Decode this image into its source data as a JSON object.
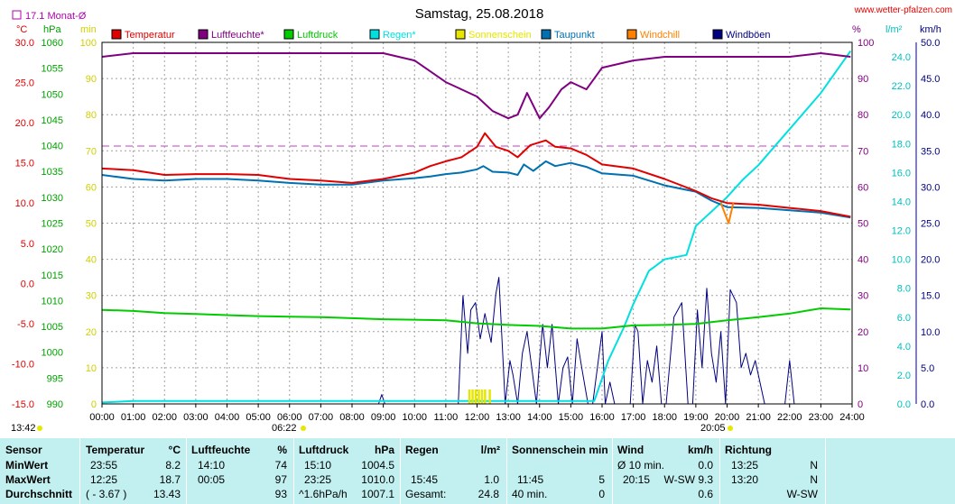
{
  "header": {
    "title": "Samstag, 25.08.2018",
    "site": "www.wetter-pfalzen.com",
    "monthly_avg_label": "17.1 Monat-Ø",
    "unit_labels": {
      "celsius": "°C",
      "hpa": "hPa",
      "min": "min",
      "pct": "%",
      "rain": "l/m²",
      "wind": "km/h"
    }
  },
  "legend": [
    {
      "label": "Temperatur",
      "color": "#e00000"
    },
    {
      "label": "Luftfeuchte*",
      "color": "#800080"
    },
    {
      "label": "Luftdruck",
      "color": "#00cc00"
    },
    {
      "label": "Regen*",
      "color": "#00e0e0"
    },
    {
      "label": "Sonnenschein",
      "color": "#e6e600"
    },
    {
      "label": "Taupunkt",
      "color": "#0070b0"
    },
    {
      "label": "Windchill",
      "color": "#ff8000"
    },
    {
      "label": "Windböen",
      "color": "#000080"
    }
  ],
  "axis_markers": {
    "sunrise": "06:22",
    "sunset": "20:05",
    "left_time": "13:42"
  },
  "chart_data": {
    "type": "line",
    "title": "Samstag, 25.08.2018",
    "x_unit": "time of day",
    "x_ticks": [
      "00:00",
      "01:00",
      "02:00",
      "03:00",
      "04:00",
      "05:00",
      "06:00",
      "07:00",
      "08:00",
      "09:00",
      "10:00",
      "11:00",
      "12:00",
      "13:00",
      "14:00",
      "15:00",
      "16:00",
      "17:00",
      "18:00",
      "19:00",
      "20:00",
      "21:00",
      "22:00",
      "23:00",
      "24:00"
    ],
    "axes": {
      "temperature_c": {
        "min": -15,
        "max": 30,
        "ticks": [
          "30.0",
          "25.0",
          "20.0",
          "15.0",
          "10.0",
          "5.0",
          "0.0",
          "-5.0",
          "-10.0",
          "-15.0"
        ]
      },
      "pressure_hpa": {
        "min": 990,
        "max": 1060,
        "ticks": [
          "1060",
          "1055",
          "1050",
          "1045",
          "1040",
          "1035",
          "1030",
          "1025",
          "1020",
          "1015",
          "1010",
          "1005",
          "1000",
          "995",
          "990"
        ]
      },
      "sun_min": {
        "min": 0,
        "max": 100,
        "ticks": [
          "100",
          "90",
          "80",
          "70",
          "60",
          "50",
          "40",
          "30",
          "20",
          "10",
          "0"
        ]
      },
      "humidity_pct": {
        "min": 0,
        "max": 100,
        "ticks": [
          "100",
          "90",
          "80",
          "70",
          "60",
          "50",
          "40",
          "30",
          "20",
          "10",
          "0"
        ]
      },
      "rain_lm2": {
        "min": 0,
        "max": 25,
        "ticks": [
          "24.0",
          "22.0",
          "20.0",
          "18.0",
          "16.0",
          "14.0",
          "12.0",
          "10.0",
          "8.0",
          "6.0",
          "4.0",
          "2.0",
          "0.0"
        ]
      },
      "wind_kmh": {
        "min": 0,
        "max": 50,
        "ticks": [
          "50.0",
          "45.0",
          "40.0",
          "35.0",
          "30.0",
          "25.0",
          "20.0",
          "15.0",
          "10.0",
          "5.0",
          "0.0"
        ]
      }
    },
    "monthly_avg_temp": 17.1,
    "series": [
      {
        "name": "Temperatur",
        "unit": "°C",
        "x": [
          0,
          1,
          2,
          3,
          4,
          5,
          6,
          7,
          8,
          9,
          10,
          10.5,
          11,
          11.5,
          12,
          12.25,
          12.6,
          13,
          13.3,
          13.7,
          14.2,
          14.5,
          15,
          15.5,
          16,
          17,
          18,
          19,
          19.5,
          20,
          21,
          22,
          23,
          23.95
        ],
        "y": [
          14.3,
          14.1,
          13.5,
          13.6,
          13.6,
          13.5,
          13.0,
          12.8,
          12.5,
          13.0,
          13.8,
          14.6,
          15.2,
          15.7,
          17.0,
          18.7,
          17.0,
          16.5,
          15.7,
          17.2,
          17.8,
          17.0,
          16.8,
          16.0,
          14.8,
          14.3,
          13.0,
          11.5,
          10.6,
          10.0,
          9.8,
          9.4,
          9.0,
          8.3
        ]
      },
      {
        "name": "Luftfeuchte*",
        "unit": "%",
        "x": [
          0,
          1,
          2,
          3,
          4,
          5,
          6,
          7,
          8,
          9,
          10,
          10.5,
          11,
          11.5,
          12,
          12.5,
          13,
          13.3,
          13.6,
          14.0,
          14.3,
          14.7,
          15.0,
          15.5,
          16,
          17,
          18,
          19,
          20,
          21,
          22,
          23,
          23.95
        ],
        "y": [
          96,
          97,
          97,
          97,
          97,
          97,
          97,
          97,
          97,
          97,
          95,
          92,
          89,
          87,
          85,
          81,
          79,
          80,
          86,
          79,
          82,
          87,
          89,
          87,
          93,
          95,
          96,
          96,
          96,
          96,
          96,
          97,
          96
        ]
      },
      {
        "name": "Luftdruck",
        "unit": "hPa",
        "x": [
          0,
          1,
          2,
          3,
          4,
          5,
          6,
          7,
          8,
          9,
          10,
          11,
          12,
          13,
          14,
          15,
          16,
          17,
          18,
          19,
          20,
          21,
          22,
          23,
          23.95
        ],
        "y": [
          1008.2,
          1008.0,
          1007.6,
          1007.4,
          1007.2,
          1007.0,
          1006.9,
          1006.8,
          1006.6,
          1006.4,
          1006.3,
          1006.2,
          1005.6,
          1005.3,
          1005.1,
          1004.6,
          1004.6,
          1005.2,
          1005.3,
          1005.5,
          1006.2,
          1006.8,
          1007.5,
          1008.5,
          1008.3
        ]
      },
      {
        "name": "Regen*",
        "unit": "l/m²",
        "x": [
          0,
          1,
          2,
          3,
          4,
          5,
          6,
          7,
          8,
          9,
          10,
          11,
          12,
          13,
          14,
          15,
          15.5,
          15.75,
          16.2,
          16.7,
          17.0,
          17.5,
          18.0,
          18.7,
          19.0,
          19.5,
          20.0,
          20.5,
          21.0,
          22.0,
          23.0,
          23.95
        ],
        "y": [
          0.1,
          0.2,
          0.2,
          0.2,
          0.2,
          0.2,
          0.2,
          0.2,
          0.2,
          0.2,
          0.2,
          0.2,
          0.2,
          0.2,
          0.2,
          0.2,
          0.2,
          0.2,
          3.0,
          5.3,
          6.9,
          9.2,
          10.0,
          10.3,
          12.3,
          13.3,
          14.3,
          15.5,
          16.5,
          19.0,
          21.5,
          24.4
        ]
      },
      {
        "name": "Sonnenschein",
        "unit": "min",
        "x": [
          11.75,
          11.85,
          11.95,
          12.05,
          12.15,
          12.25,
          12.4
        ],
        "y": [
          4,
          4,
          4,
          4,
          4,
          4,
          4
        ]
      },
      {
        "name": "Taupunkt",
        "unit": "°C",
        "x": [
          0,
          1,
          2,
          3,
          4,
          5,
          6,
          7,
          8,
          9,
          10,
          10.5,
          11,
          11.5,
          12,
          12.2,
          12.5,
          13,
          13.3,
          13.5,
          13.8,
          14.2,
          14.5,
          15,
          15.5,
          16,
          17,
          18,
          19,
          19.5,
          20,
          21,
          22,
          23,
          23.95
        ],
        "y": [
          13.5,
          13.0,
          12.8,
          13.0,
          13.0,
          12.8,
          12.5,
          12.3,
          12.3,
          12.8,
          13.1,
          13.3,
          13.6,
          13.8,
          14.2,
          14.6,
          13.9,
          13.8,
          13.5,
          14.8,
          14.0,
          15.2,
          14.6,
          15.0,
          14.5,
          13.7,
          13.4,
          12.2,
          11.4,
          10.3,
          9.5,
          9.4,
          9.1,
          8.8,
          8.2
        ]
      },
      {
        "name": "Windchill",
        "unit": "°C",
        "x": [
          19.8,
          20.05,
          20.2
        ],
        "y": [
          10.0,
          7.5,
          10.0
        ]
      },
      {
        "name": "Windböen",
        "unit": "km/h",
        "x": [
          0,
          8.85,
          8.95,
          9.05,
          11.4,
          11.55,
          11.7,
          11.8,
          11.95,
          12.1,
          12.25,
          12.45,
          12.6,
          12.7,
          12.9,
          13.05,
          13.15,
          13.3,
          13.45,
          13.6,
          13.75,
          13.9,
          14.0,
          14.1,
          14.25,
          14.4,
          14.6,
          14.75,
          14.9,
          15.05,
          15.2,
          15.35,
          15.55,
          15.7,
          16.0,
          16.1,
          16.25,
          16.4,
          16.9,
          17.05,
          17.15,
          17.3,
          17.45,
          17.6,
          17.75,
          17.9,
          18.05,
          18.3,
          18.55,
          18.75,
          18.9,
          19.05,
          19.2,
          19.35,
          19.5,
          19.65,
          19.8,
          19.95,
          20.1,
          20.3,
          20.45,
          20.6,
          20.75,
          20.9,
          21.05,
          21.2,
          21.4,
          21.85,
          22.0,
          22.15,
          22.35,
          22.5,
          24.0
        ],
        "y": [
          0,
          0,
          1.3,
          0,
          0,
          15.0,
          7.0,
          13.0,
          14.0,
          9.0,
          12.5,
          8.5,
          15.2,
          17.5,
          0,
          6.0,
          4.0,
          0,
          7.0,
          10.0,
          5.0,
          0,
          6.0,
          11.0,
          5.0,
          11.0,
          0,
          5.0,
          6.5,
          0,
          9.0,
          5.0,
          0,
          0,
          10.0,
          0,
          3.0,
          0,
          0,
          11.0,
          10.0,
          0,
          6.0,
          3.0,
          8.0,
          0,
          0,
          12.0,
          14.0,
          0,
          0,
          13.0,
          5.0,
          16.0,
          7.0,
          3.0,
          10.0,
          0,
          15.8,
          14.0,
          5.0,
          7.0,
          4.0,
          6.0,
          3.0,
          0,
          0,
          0,
          6.0,
          0,
          0,
          0,
          0
        ]
      }
    ]
  },
  "table": {
    "headers": {
      "sensor": "Sensor",
      "temp": "Temperatur",
      "temp_u": "°C",
      "hum": "Luftfeuchte",
      "hum_u": "%",
      "press": "Luftdruck",
      "press_u": "hPa",
      "rain": "Regen",
      "rain_u": "l/m²",
      "sun": "Sonnenschein min",
      "wind": "Wind",
      "wind_u": "km/h",
      "dir": "Richtung"
    },
    "rows": [
      {
        "label": "MinWert",
        "temp_t": "23:55",
        "temp_v": "8.2",
        "hum_t": "14:10",
        "hum_v": "74",
        "press_t": "15:10",
        "press_v": "1004.5",
        "rain_t": "",
        "rain_v": "",
        "sun_t": "",
        "sun_v": "",
        "wind_t": "Ø 10 min.",
        "wind_v": "0.0",
        "dir_t": "13:25",
        "dir_v": "N"
      },
      {
        "label": "MaxWert",
        "temp_t": "12:25",
        "temp_v": "18.7",
        "hum_t": "00:05",
        "hum_v": "97",
        "press_t": "23:25",
        "press_v": "1010.0",
        "rain_t": "15:45",
        "rain_v": "1.0",
        "sun_t": "11:45",
        "sun_v": "5",
        "wind_t": "20:15",
        "wind_v": "W-SW 9.3",
        "dir_t": "13:20",
        "dir_v": "N"
      },
      {
        "label": "Durchschnitt",
        "temp_t": "( - 3.67 )",
        "temp_v": "13.43",
        "hum_t": "",
        "hum_v": "93",
        "press_t": "^1.6hPa/h",
        "press_v": "1007.1",
        "rain_t": "Gesamt:",
        "rain_v": "24.8",
        "sun_t": "40 min.",
        "sun_v": "0",
        "wind_t": "",
        "wind_v": "0.6",
        "dir_t": "",
        "dir_v": "W-SW"
      }
    ]
  }
}
